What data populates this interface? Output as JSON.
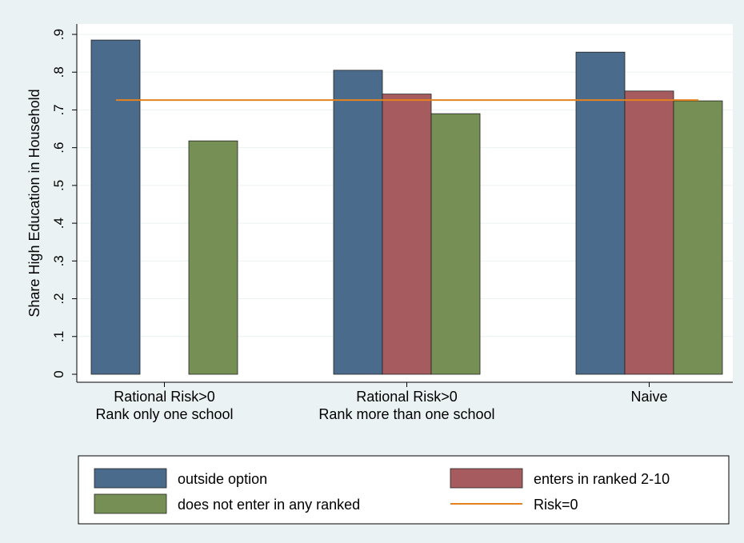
{
  "colors": {
    "background": "#eaf2f3",
    "plot_area": "#ffffff",
    "grid": "#eaf2f3",
    "axis": "#000000",
    "outside_option": "#4a6b8c",
    "enters_ranked": "#a65c5e",
    "not_enter": "#768f55",
    "risk0_line": "#e6821e",
    "bar_outline": "#222222"
  },
  "chart_data": {
    "type": "bar",
    "ylabel": "Share High Education in Household",
    "ylim": [
      0,
      0.9
    ],
    "yticks": [
      0,
      0.1,
      0.2,
      0.3,
      0.4,
      0.5,
      0.6,
      0.7,
      0.8,
      0.9
    ],
    "ytick_labels": [
      "0",
      ".1",
      ".2",
      ".3",
      ".4",
      ".5",
      ".6",
      ".7",
      ".8",
      ".9"
    ],
    "grid": true,
    "categories": [
      [
        "Rational Risk>0",
        "Rank only one school"
      ],
      [
        "Rational Risk>0",
        "Rank more than one school"
      ],
      [
        "Naive"
      ]
    ],
    "series": [
      {
        "name": "outside option",
        "color_key": "outside_option",
        "values": [
          0.885,
          0.805,
          0.853
        ]
      },
      {
        "name": "enters in ranked 2-10",
        "color_key": "enters_ranked",
        "values": [
          null,
          0.742,
          0.75
        ]
      },
      {
        "name": "does not enter in any ranked",
        "color_key": "not_enter",
        "values": [
          0.618,
          0.69,
          0.724
        ]
      }
    ],
    "reference_line": {
      "name": "Risk=0",
      "value": 0.726,
      "color_key": "risk0_line"
    },
    "legend": {
      "placement": "bottom",
      "entries": [
        {
          "label": "outside option",
          "kind": "box",
          "color_key": "outside_option"
        },
        {
          "label": "enters in ranked 2-10",
          "kind": "box",
          "color_key": "enters_ranked"
        },
        {
          "label": "does not enter in any ranked",
          "kind": "box",
          "color_key": "not_enter"
        },
        {
          "label": "Risk=0",
          "kind": "line",
          "color_key": "risk0_line"
        }
      ]
    }
  }
}
